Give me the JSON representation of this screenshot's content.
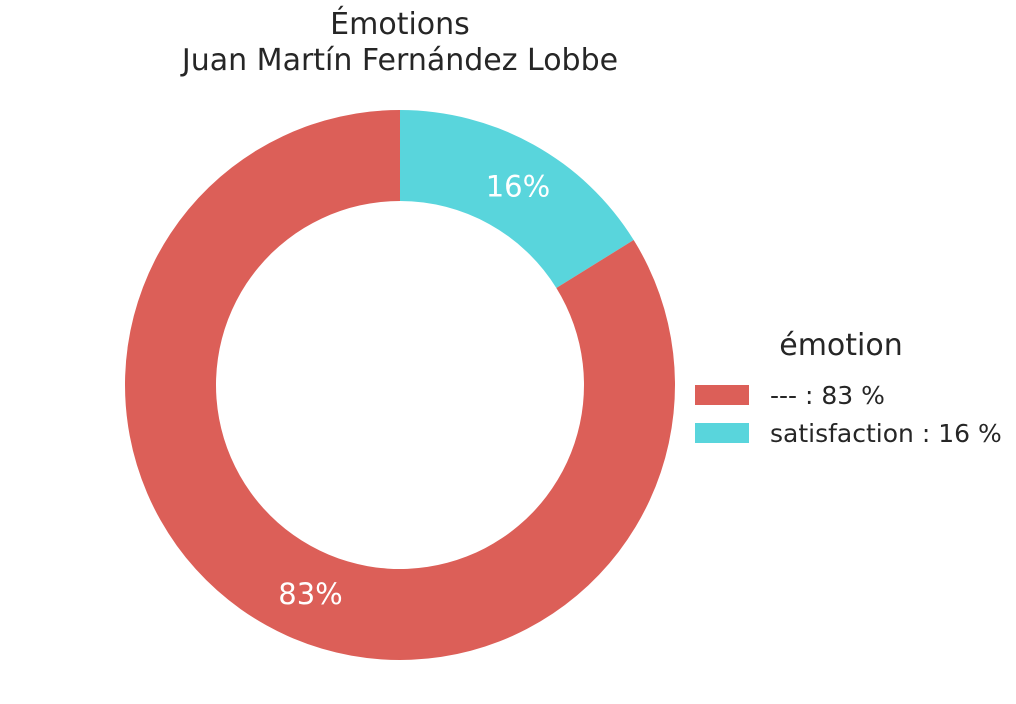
{
  "chart_data": {
    "type": "pie",
    "title": [
      "Émotions",
      "Juan Martín Fernández Lobbe"
    ],
    "slices": [
      {
        "label": "---",
        "value": 83,
        "pct_label": "83%",
        "legend_label": "--- : 83 %",
        "color": "#dc5f58"
      },
      {
        "label": "satisfaction",
        "value": 16,
        "pct_label": "16%",
        "legend_label": "satisfaction : 16 %",
        "color": "#59d5dc"
      }
    ],
    "donut": true,
    "start_angle": "top",
    "direction": "clockwise-from-top for smaller slice",
    "legend": {
      "title": "émotion",
      "placement": "right"
    }
  }
}
